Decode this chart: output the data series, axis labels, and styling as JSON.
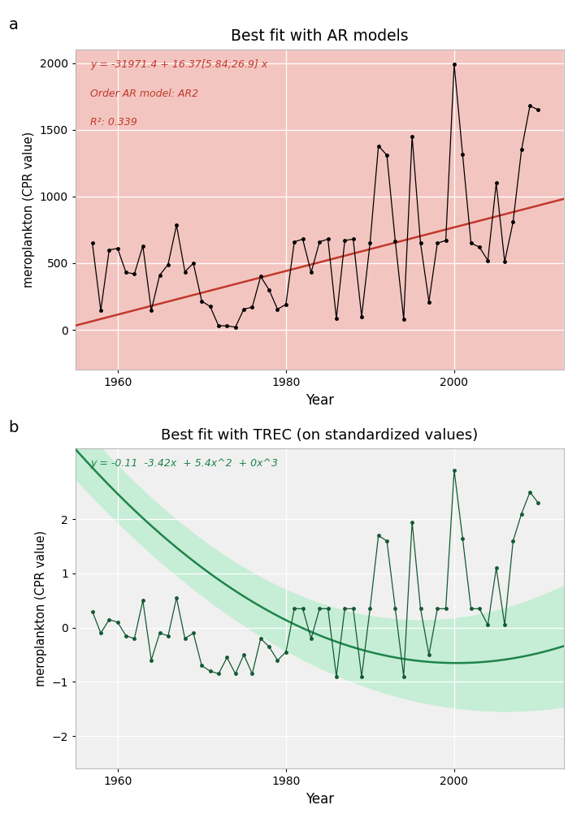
{
  "title_a": "Best fit with AR models",
  "title_b": "Best fit with TREC (on standardized values)",
  "xlabel": "Year",
  "ylabel": "meroplankton (CPR value)",
  "label_a": "a",
  "label_b": "b",
  "annotation_a_line1": "y = -31971.4 + 16.37[5.84;26.9] x",
  "annotation_a_line2": "Order AR model: AR2",
  "annotation_a_line3": "R²: 0.339",
  "annotation_b": "y = -0.11  -3.42x  + 5.4x^2  + 0x^3",
  "years_a": [
    1957,
    1958,
    1959,
    1960,
    1961,
    1962,
    1963,
    1964,
    1965,
    1966,
    1967,
    1968,
    1969,
    1970,
    1971,
    1972,
    1973,
    1974,
    1975,
    1976,
    1977,
    1978,
    1979,
    1980,
    1981,
    1982,
    1983,
    1984,
    1985,
    1986,
    1987,
    1988,
    1989,
    1990,
    1991,
    1992,
    1993,
    1994,
    1995,
    1996,
    1997,
    1998,
    1999,
    2000,
    2001,
    2002,
    2003,
    2004,
    2005,
    2006,
    2007,
    2008,
    2009,
    2010
  ],
  "values_a": [
    650,
    145,
    600,
    610,
    430,
    420,
    630,
    145,
    410,
    490,
    785,
    435,
    500,
    215,
    175,
    30,
    30,
    20,
    155,
    170,
    400,
    300,
    155,
    190,
    660,
    680,
    430,
    660,
    680,
    85,
    670,
    680,
    100,
    650,
    1380,
    1310,
    665,
    80,
    1450,
    650,
    210,
    650,
    670,
    1990,
    1315,
    650,
    620,
    520,
    1100,
    510,
    810,
    1350,
    1680,
    1650
  ],
  "intercept_a": -31971.4,
  "slope_a": 16.37,
  "ci_lower_slope_a": 5.84,
  "ci_upper_slope_a": 26.9,
  "trend_color_a": "#c0392b",
  "ci_color_a": "#f5b7b1",
  "data_color_a": "black",
  "years_b": [
    1957,
    1958,
    1959,
    1960,
    1961,
    1962,
    1963,
    1964,
    1965,
    1966,
    1967,
    1968,
    1969,
    1970,
    1971,
    1972,
    1973,
    1974,
    1975,
    1976,
    1977,
    1978,
    1979,
    1980,
    1981,
    1982,
    1983,
    1984,
    1985,
    1986,
    1987,
    1988,
    1989,
    1990,
    1991,
    1992,
    1993,
    1994,
    1995,
    1996,
    1997,
    1998,
    1999,
    2000,
    2001,
    2002,
    2003,
    2004,
    2005,
    2006,
    2007,
    2008,
    2009,
    2010
  ],
  "values_b": [
    0.3,
    -0.1,
    0.15,
    0.1,
    -0.15,
    -0.2,
    0.5,
    -0.6,
    -0.1,
    -0.15,
    0.55,
    -0.2,
    -0.1,
    -0.7,
    -0.8,
    -0.85,
    -0.55,
    -0.85,
    -0.5,
    -0.85,
    -0.2,
    -0.35,
    -0.6,
    -0.45,
    0.35,
    0.35,
    -0.2,
    0.35,
    0.35,
    -0.9,
    0.35,
    0.35,
    -0.9,
    0.35,
    1.7,
    1.6,
    0.35,
    -0.9,
    1.95,
    0.35,
    -0.5,
    0.35,
    0.35,
    2.9,
    1.65,
    0.35,
    0.35,
    0.05,
    1.1,
    0.05,
    1.6,
    2.1,
    2.5,
    2.3
  ],
  "trec_c0": -0.11,
  "trec_c1": -3.42,
  "trec_c2": 5.4,
  "trec_c3": 0.0,
  "trend_color_b": "#1e8449",
  "ci_color_b": "#abebc6",
  "data_color_b": "#145a32",
  "bg_color": "#f0f0f0",
  "grid_color": "white",
  "ylim_a": [
    -300,
    2100
  ],
  "ylim_b": [
    -2.6,
    3.3
  ],
  "yticks_a": [
    0,
    500,
    1000,
    1500,
    2000
  ],
  "yticks_b": [
    -2,
    -1,
    0,
    1,
    2
  ],
  "xticks": [
    1960,
    1980,
    2000
  ],
  "xlim": [
    1955,
    2013
  ]
}
